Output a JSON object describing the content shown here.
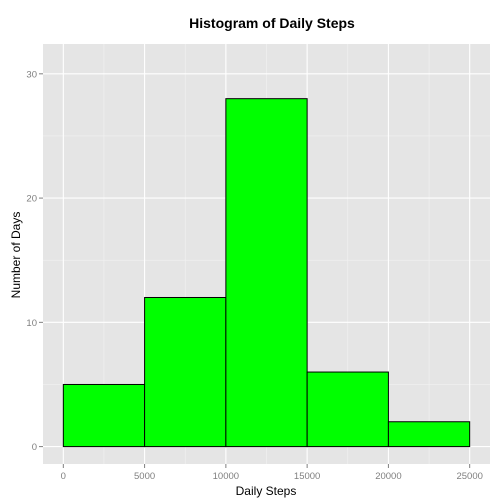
{
  "chart_data": {
    "type": "histogram",
    "title": "Histogram of Daily Steps",
    "xlabel": "Daily Steps",
    "ylabel": "Number of Days",
    "bins": [
      {
        "start": 0,
        "end": 5000,
        "count": 5
      },
      {
        "start": 5000,
        "end": 10000,
        "count": 12
      },
      {
        "start": 10000,
        "end": 15000,
        "count": 28
      },
      {
        "start": 15000,
        "end": 20000,
        "count": 6
      },
      {
        "start": 20000,
        "end": 25000,
        "count": 2
      }
    ],
    "xlim": [
      -1250,
      26250
    ],
    "ylim": [
      -1.4,
      32.4
    ],
    "x_ticks": [
      0,
      5000,
      10000,
      15000,
      20000,
      25000
    ],
    "y_ticks": [
      0,
      10,
      20,
      30
    ],
    "grid": true,
    "colors": {
      "bar_fill": "#00ff00",
      "bar_stroke": "#000000",
      "panel_bg": "#e5e5e5",
      "grid_major": "#ffffff",
      "grid_minor": "#f2f2f2"
    }
  }
}
